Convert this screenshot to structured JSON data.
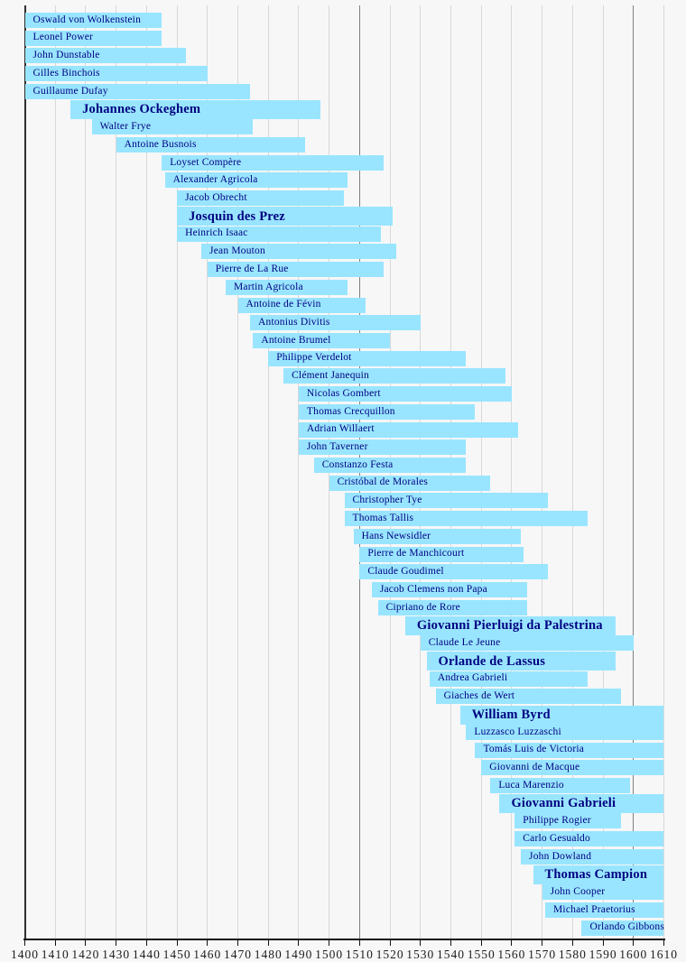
{
  "chart_data": {
    "type": "bar",
    "subtype": "timeline-lifespans",
    "title": "",
    "xlabel": "",
    "ylabel": "",
    "x_axis": {
      "min": 1400,
      "max": 1610,
      "tick_interval": 10,
      "tick_labels": [
        "1400",
        "1410",
        "1420",
        "1430",
        "1440",
        "1450",
        "1460",
        "1470",
        "1480",
        "1490",
        "1500",
        "1510",
        "1520",
        "1530",
        "1540",
        "1550",
        "1560",
        "1570",
        "1580",
        "1590",
        "1600",
        "1610"
      ]
    },
    "grid": true,
    "dark_gridline_years": [
      1510,
      1600
    ],
    "legend": "none",
    "composers": [
      {
        "name": "Oswald von Wolkenstein",
        "start": 1400,
        "end": 1445,
        "start_clipped": true,
        "end_clipped": false,
        "bold": false
      },
      {
        "name": "Leonel Power",
        "start": 1400,
        "end": 1445,
        "start_clipped": true,
        "end_clipped": false,
        "bold": false
      },
      {
        "name": "John Dunstable",
        "start": 1400,
        "end": 1453,
        "start_clipped": true,
        "end_clipped": false,
        "bold": false
      },
      {
        "name": "Gilles Binchois",
        "start": 1400,
        "end": 1460,
        "start_clipped": false,
        "end_clipped": false,
        "bold": false
      },
      {
        "name": "Guillaume Dufay",
        "start": 1400,
        "end": 1474,
        "start_clipped": true,
        "end_clipped": false,
        "bold": false
      },
      {
        "name": "Johannes Ockeghem",
        "start": 1415,
        "end": 1497,
        "start_clipped": false,
        "end_clipped": false,
        "bold": true
      },
      {
        "name": "Walter Frye",
        "start": 1422,
        "end": 1475,
        "start_clipped": false,
        "end_clipped": false,
        "bold": false
      },
      {
        "name": "Antoine Busnois",
        "start": 1430,
        "end": 1492,
        "start_clipped": false,
        "end_clipped": false,
        "bold": false
      },
      {
        "name": "Loyset Compère",
        "start": 1445,
        "end": 1518,
        "start_clipped": false,
        "end_clipped": false,
        "bold": false
      },
      {
        "name": "Alexander Agricola",
        "start": 1446,
        "end": 1506,
        "start_clipped": false,
        "end_clipped": false,
        "bold": false
      },
      {
        "name": "Jacob Obrecht",
        "start": 1450,
        "end": 1505,
        "start_clipped": false,
        "end_clipped": false,
        "bold": false
      },
      {
        "name": "Josquin des Prez",
        "start": 1450,
        "end": 1521,
        "start_clipped": false,
        "end_clipped": false,
        "bold": true
      },
      {
        "name": "Heinrich Isaac",
        "start": 1450,
        "end": 1517,
        "start_clipped": false,
        "end_clipped": false,
        "bold": false
      },
      {
        "name": "Jean Mouton",
        "start": 1458,
        "end": 1522,
        "start_clipped": false,
        "end_clipped": false,
        "bold": false
      },
      {
        "name": "Pierre de La Rue",
        "start": 1460,
        "end": 1518,
        "start_clipped": false,
        "end_clipped": false,
        "bold": false
      },
      {
        "name": "Martin Agricola",
        "start": 1466,
        "end": 1506,
        "start_clipped": false,
        "end_clipped": false,
        "bold": false
      },
      {
        "name": "Antoine de Févin",
        "start": 1470,
        "end": 1512,
        "start_clipped": false,
        "end_clipped": false,
        "bold": false
      },
      {
        "name": "Antonius Divitis",
        "start": 1474,
        "end": 1530,
        "start_clipped": false,
        "end_clipped": false,
        "bold": false
      },
      {
        "name": "Antoine Brumel",
        "start": 1475,
        "end": 1520,
        "start_clipped": false,
        "end_clipped": false,
        "bold": false
      },
      {
        "name": "Philippe Verdelot",
        "start": 1480,
        "end": 1545,
        "start_clipped": false,
        "end_clipped": false,
        "bold": false
      },
      {
        "name": "Clément Janequin",
        "start": 1485,
        "end": 1558,
        "start_clipped": false,
        "end_clipped": false,
        "bold": false
      },
      {
        "name": "Nicolas Gombert",
        "start": 1490,
        "end": 1560,
        "start_clipped": false,
        "end_clipped": false,
        "bold": false
      },
      {
        "name": "Thomas Crecquillon",
        "start": 1490,
        "end": 1548,
        "start_clipped": false,
        "end_clipped": false,
        "bold": false
      },
      {
        "name": "Adrian Willaert",
        "start": 1490,
        "end": 1562,
        "start_clipped": false,
        "end_clipped": false,
        "bold": false
      },
      {
        "name": "John Taverner",
        "start": 1490,
        "end": 1545,
        "start_clipped": false,
        "end_clipped": false,
        "bold": false
      },
      {
        "name": "Constanzo Festa",
        "start": 1495,
        "end": 1545,
        "start_clipped": false,
        "end_clipped": false,
        "bold": false
      },
      {
        "name": "Cristóbal de Morales",
        "start": 1500,
        "end": 1553,
        "start_clipped": false,
        "end_clipped": false,
        "bold": false
      },
      {
        "name": "Christopher Tye",
        "start": 1505,
        "end": 1572,
        "start_clipped": false,
        "end_clipped": false,
        "bold": false
      },
      {
        "name": "Thomas Tallis",
        "start": 1505,
        "end": 1585,
        "start_clipped": false,
        "end_clipped": false,
        "bold": false
      },
      {
        "name": "Hans Newsidler",
        "start": 1508,
        "end": 1563,
        "start_clipped": false,
        "end_clipped": false,
        "bold": false
      },
      {
        "name": "Pierre de Manchicourt",
        "start": 1510,
        "end": 1564,
        "start_clipped": false,
        "end_clipped": false,
        "bold": false
      },
      {
        "name": "Claude Goudimel",
        "start": 1510,
        "end": 1572,
        "start_clipped": false,
        "end_clipped": false,
        "bold": false
      },
      {
        "name": "Jacob Clemens non Papa",
        "start": 1514,
        "end": 1565,
        "start_clipped": false,
        "end_clipped": false,
        "bold": false
      },
      {
        "name": "Cipriano de Rore",
        "start": 1516,
        "end": 1565,
        "start_clipped": false,
        "end_clipped": false,
        "bold": false
      },
      {
        "name": "Giovanni Pierluigi da Palestrina",
        "start": 1525,
        "end": 1594,
        "start_clipped": false,
        "end_clipped": false,
        "bold": true
      },
      {
        "name": "Claude Le Jeune",
        "start": 1530,
        "end": 1600,
        "start_clipped": false,
        "end_clipped": false,
        "bold": false
      },
      {
        "name": "Orlande de Lassus",
        "start": 1532,
        "end": 1594,
        "start_clipped": false,
        "end_clipped": false,
        "bold": true
      },
      {
        "name": "Andrea Gabrieli",
        "start": 1533,
        "end": 1585,
        "start_clipped": false,
        "end_clipped": false,
        "bold": false
      },
      {
        "name": "Giaches de Wert",
        "start": 1535,
        "end": 1596,
        "start_clipped": false,
        "end_clipped": false,
        "bold": false
      },
      {
        "name": "William Byrd",
        "start": 1543,
        "end": 1610,
        "start_clipped": false,
        "end_clipped": true,
        "bold": true
      },
      {
        "name": "Luzzasco Luzzaschi",
        "start": 1545,
        "end": 1610,
        "start_clipped": false,
        "end_clipped": true,
        "bold": false
      },
      {
        "name": "Tomás Luis de Victoria",
        "start": 1548,
        "end": 1610,
        "start_clipped": false,
        "end_clipped": true,
        "bold": false
      },
      {
        "name": "Giovanni de Macque",
        "start": 1550,
        "end": 1610,
        "start_clipped": false,
        "end_clipped": true,
        "bold": false
      },
      {
        "name": "Luca Marenzio",
        "start": 1553,
        "end": 1599,
        "start_clipped": false,
        "end_clipped": false,
        "bold": false
      },
      {
        "name": "Giovanni Gabrieli",
        "start": 1556,
        "end": 1610,
        "start_clipped": false,
        "end_clipped": true,
        "bold": true
      },
      {
        "name": "Philippe Rogier",
        "start": 1561,
        "end": 1596,
        "start_clipped": false,
        "end_clipped": false,
        "bold": false
      },
      {
        "name": "Carlo Gesualdo",
        "start": 1561,
        "end": 1610,
        "start_clipped": false,
        "end_clipped": true,
        "bold": false
      },
      {
        "name": "John Dowland",
        "start": 1563,
        "end": 1610,
        "start_clipped": false,
        "end_clipped": true,
        "bold": false
      },
      {
        "name": "Thomas Campion",
        "start": 1567,
        "end": 1610,
        "start_clipped": false,
        "end_clipped": true,
        "bold": true
      },
      {
        "name": "John Cooper",
        "start": 1570,
        "end": 1610,
        "start_clipped": false,
        "end_clipped": true,
        "bold": false
      },
      {
        "name": "Michael Praetorius",
        "start": 1571,
        "end": 1610,
        "start_clipped": false,
        "end_clipped": true,
        "bold": false
      },
      {
        "name": "Orlando Gibbons",
        "start": 1583,
        "end": 1610,
        "start_clipped": false,
        "end_clipped": true,
        "bold": false
      }
    ]
  },
  "colors": {
    "background": "#f7f7f7",
    "bar_fill": "#99e5ff",
    "label_text": "#000080",
    "gridline": "#d8d8d8",
    "gridline_dark": "#6e6e6e",
    "origin_line": "#2e2e2e",
    "axis": "#111111",
    "axis_text": "#1c1c1c"
  }
}
